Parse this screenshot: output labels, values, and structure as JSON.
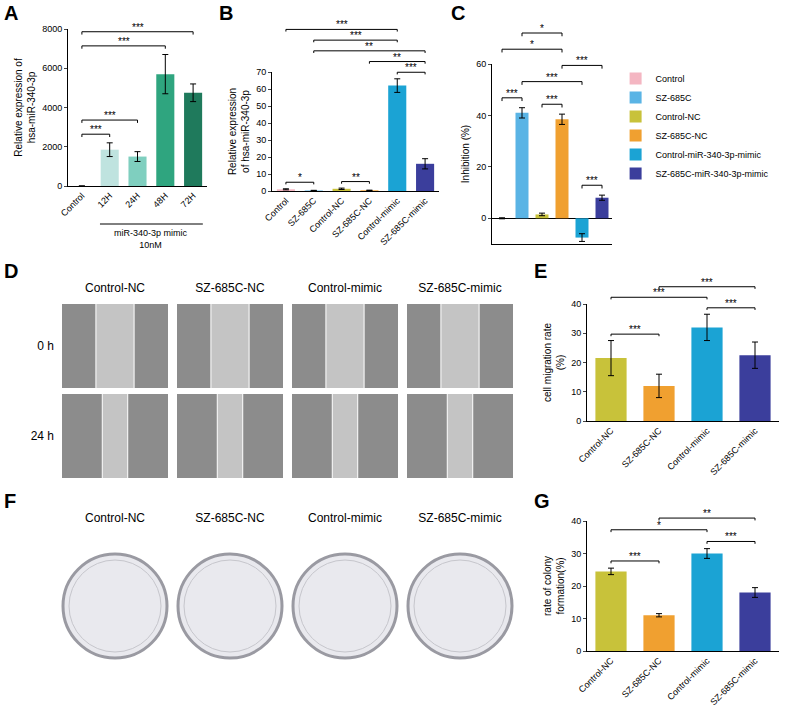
{
  "chart_data": [
    {
      "panel": "A",
      "type": "bar",
      "categories": [
        "Control",
        "12H",
        "24H",
        "48H",
        "72H"
      ],
      "values": [
        1,
        1850,
        1500,
        5700,
        4750
      ],
      "errors": [
        0.2,
        350,
        250,
        1000,
        450
      ],
      "colors": [
        "#f4b6c2",
        "#bfe3df",
        "#7fcfbf",
        "#2fa57f",
        "#1f7a5c"
      ],
      "ylim": [
        0,
        8000
      ],
      "yticks": [
        0,
        2000,
        4000,
        6000,
        8000
      ],
      "y_title": "Relative expression of hsa-miR-340-3p",
      "group_label": {
        "categories": [
          "12H",
          "24H",
          "48H",
          "72H"
        ],
        "text": [
          "miR-340-3p mimic",
          "10nM"
        ]
      },
      "significance": [
        {
          "from": "Control",
          "to": "12H",
          "label": "***"
        },
        {
          "from": "Control",
          "to": "24H",
          "label": "***"
        },
        {
          "from": "Control",
          "to": "48H",
          "label": "***"
        },
        {
          "from": "Control",
          "to": "72H",
          "label": "***"
        }
      ]
    },
    {
      "panel": "B",
      "type": "bar",
      "categories": [
        "Control",
        "SZ-685C",
        "Control-NC",
        "SZ-685C-NC",
        "Control-mimic",
        "SZ-685C-mimic"
      ],
      "values": [
        1,
        0.3,
        1.3,
        0.4,
        62,
        16
      ],
      "errors": [
        0.3,
        0.1,
        0.4,
        0.1,
        4,
        3
      ],
      "colors": [
        "#f4b6c2",
        "#5ab4e5",
        "#c8c23a",
        "#f0a030",
        "#1ba3d4",
        "#3b3e9c"
      ],
      "ylim": [
        0,
        70
      ],
      "yticks": [
        0,
        10,
        20,
        30,
        40,
        50,
        60,
        70
      ],
      "y_title": "Relative expression of hsa-miR-340-3p",
      "significance": [
        {
          "from": "Control",
          "to": "SZ-685C",
          "label": "*"
        },
        {
          "from": "Control-NC",
          "to": "SZ-685C-NC",
          "label": "**"
        },
        {
          "from": "Control-mimic",
          "to": "SZ-685C-mimic",
          "label": "***"
        },
        {
          "from": "SZ-685C-NC",
          "to": "SZ-685C-mimic",
          "label": "**"
        },
        {
          "from": "SZ-685C",
          "to": "SZ-685C-mimic",
          "label": "**"
        },
        {
          "from": "SZ-685C",
          "to": "Control-mimic",
          "label": "***"
        },
        {
          "from": "Control",
          "to": "Control-mimic",
          "label": "***"
        }
      ]
    },
    {
      "panel": "C",
      "type": "bar",
      "categories": [
        "Control",
        "SZ-685C",
        "Control-NC",
        "SZ-685C-NC",
        "Control-miR-340-3p-mimic",
        "SZ-685C-miR-340-3p-mimic"
      ],
      "values": [
        0,
        41,
        1.5,
        38.5,
        -7.5,
        8
      ],
      "errors": [
        0.2,
        2,
        0.5,
        2,
        1.5,
        1
      ],
      "colors": [
        "#f4b6c2",
        "#5ab4e5",
        "#c8c23a",
        "#f0a030",
        "#1ba3d4",
        "#3b3e9c"
      ],
      "ylim": [
        -10,
        60
      ],
      "yticks": [
        0,
        20,
        40,
        60
      ],
      "y_title": "Inhibition (%)",
      "tick_labels": "y",
      "legend": "right",
      "significance": [
        {
          "from": "Control",
          "to": "SZ-685C",
          "label": "***"
        },
        {
          "from": "Control-NC",
          "to": "SZ-685C-NC",
          "label": "***"
        },
        {
          "from": "Control-miR-340-3p-mimic",
          "to": "SZ-685C-miR-340-3p-mimic",
          "label": "***"
        },
        {
          "from": "SZ-685C",
          "to": "Control-miR-340-3p-mimic",
          "label": "***"
        },
        {
          "from": "SZ-685C-NC",
          "to": "SZ-685C-miR-340-3p-mimic",
          "label": "***"
        },
        {
          "from": "Control",
          "to": "SZ-685C-NC",
          "label": "*"
        },
        {
          "from": "SZ-685C",
          "to": "SZ-685C-NC",
          "label": "*"
        }
      ]
    },
    {
      "panel": "E",
      "type": "bar",
      "categories": [
        "Control-NC",
        "SZ-685C-NC",
        "Control-mimic",
        "SZ-685C-mimic"
      ],
      "values": [
        21.5,
        12,
        32,
        22.5
      ],
      "errors": [
        6,
        4,
        4.5,
        4.5
      ],
      "colors": [
        "#c8c23a",
        "#f0a030",
        "#1ba3d4",
        "#3b3e9c"
      ],
      "ylim": [
        0,
        40
      ],
      "yticks": [
        0,
        10,
        20,
        30,
        40
      ],
      "y_title": "cell migration rate (%)",
      "significance": [
        {
          "from": "Control-NC",
          "to": "SZ-685C-NC",
          "label": "***"
        },
        {
          "from": "Control-mimic",
          "to": "SZ-685C-mimic",
          "label": "***"
        },
        {
          "from": "Control-NC",
          "to": "Control-mimic",
          "label": "***"
        },
        {
          "from": "SZ-685C-NC",
          "to": "SZ-685C-mimic",
          "label": "***"
        }
      ]
    },
    {
      "panel": "G",
      "type": "bar",
      "categories": [
        "Control-NC",
        "SZ-685C-NC",
        "Control-mimic",
        "SZ-685C-mimic"
      ],
      "values": [
        24.5,
        11,
        30,
        18
      ],
      "errors": [
        1,
        0.5,
        1.5,
        1.5
      ],
      "colors": [
        "#c8c23a",
        "#f0a030",
        "#1ba3d4",
        "#3b3e9c"
      ],
      "ylim": [
        0,
        40
      ],
      "yticks": [
        0,
        10,
        20,
        30,
        40
      ],
      "y_title": "rate of colony formation(%)",
      "significance": [
        {
          "from": "Control-NC",
          "to": "SZ-685C-NC",
          "label": "***"
        },
        {
          "from": "Control-mimic",
          "to": "SZ-685C-mimic",
          "label": "***"
        },
        {
          "from": "Control-NC",
          "to": "Control-mimic",
          "label": "*"
        },
        {
          "from": "SZ-685C-NC",
          "to": "SZ-685C-mimic",
          "label": "**"
        }
      ]
    }
  ],
  "images": [
    {
      "panel": "D",
      "kind": "wound healing",
      "columns": [
        "Control-NC",
        "SZ-685C-NC",
        "Control-mimic",
        "SZ-685C-mimic"
      ],
      "rows": [
        "0 h",
        "24 h"
      ]
    },
    {
      "panel": "F",
      "kind": "colony formation",
      "columns": [
        "Control-NC",
        "SZ-685C-NC",
        "Control-mimic",
        "SZ-685C-mimic"
      ]
    }
  ]
}
